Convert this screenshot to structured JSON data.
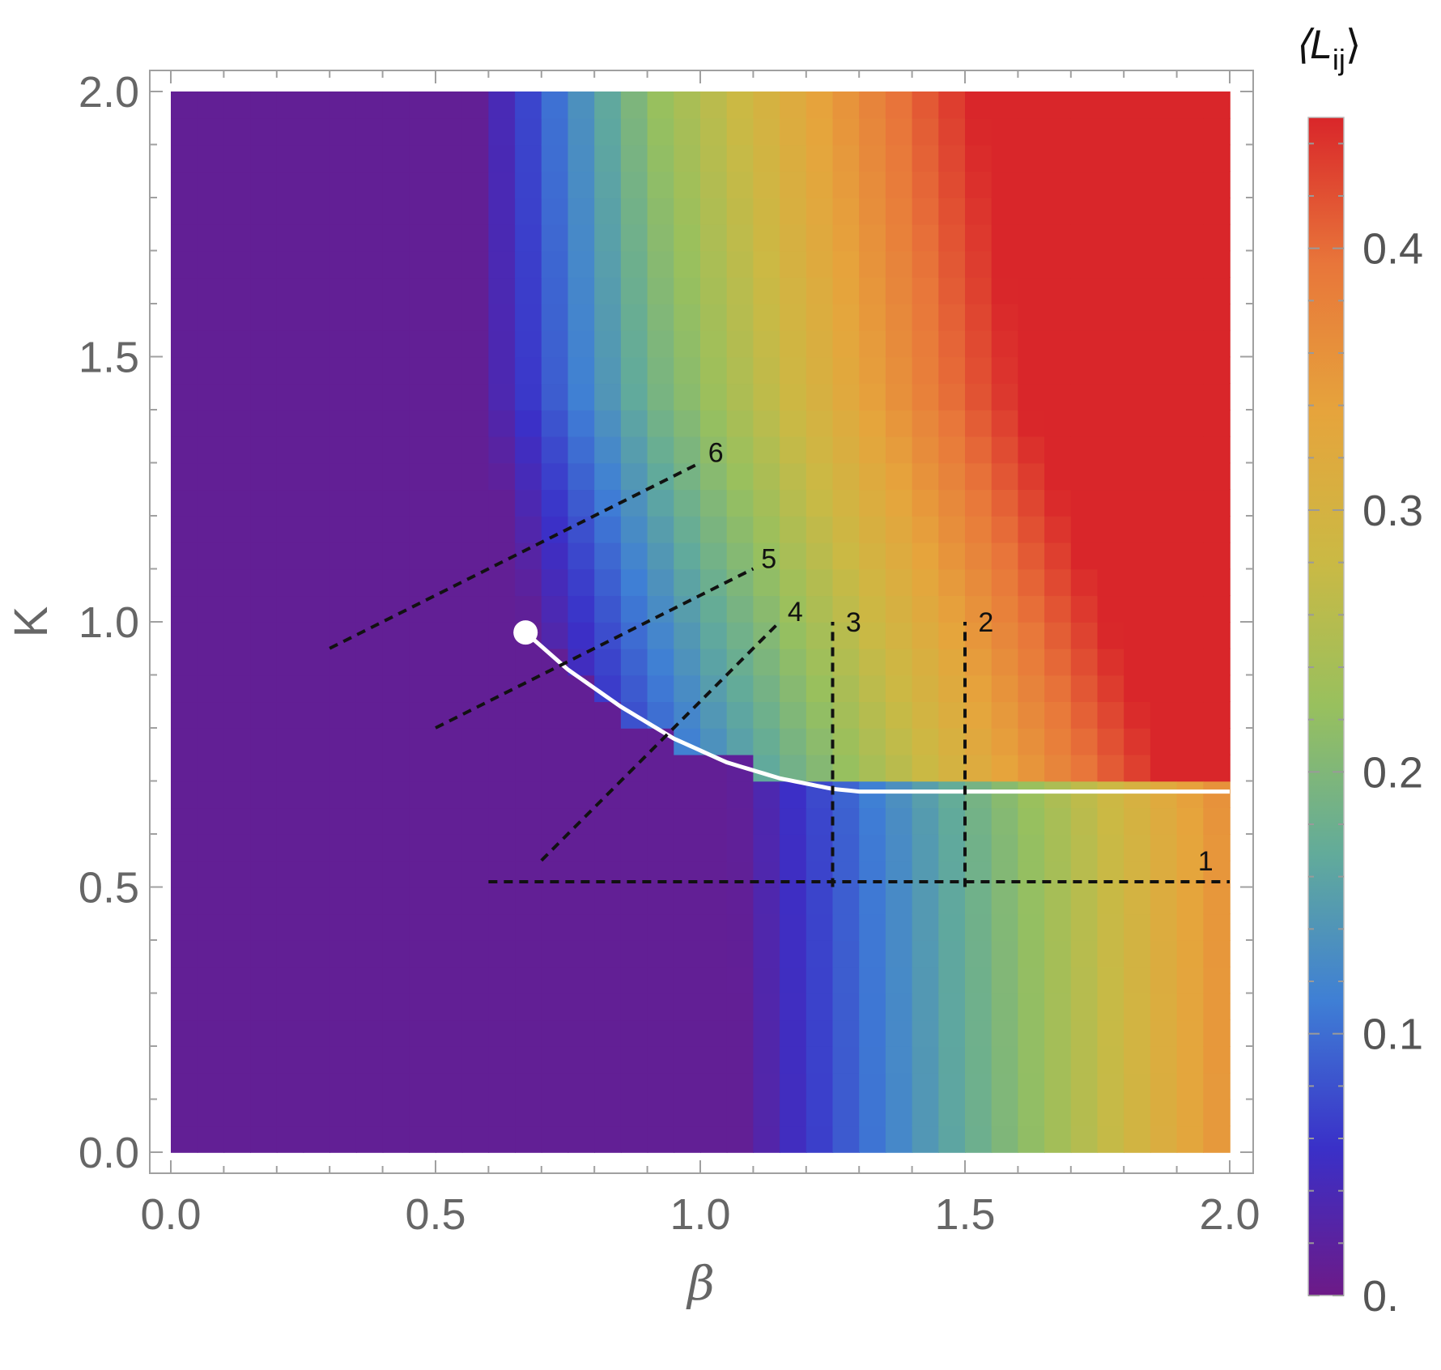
{
  "chart_data": {
    "type": "heatmap",
    "title": "",
    "xlabel": "β",
    "ylabel": "K",
    "xlim": [
      0.0,
      2.0
    ],
    "ylim": [
      0.0,
      2.0
    ],
    "x_ticks": [
      "0.0",
      "0.5",
      "1.0",
      "1.5",
      "2.0"
    ],
    "y_ticks": [
      "0.0",
      "0.5",
      "1.0",
      "1.5",
      "2.0"
    ],
    "grid": false,
    "grid_resolution": 0.05,
    "colormap": [
      "#6d1a87",
      "#3a30c8",
      "#3f7fd5",
      "#62ab9a",
      "#98c05e",
      "#cbb944",
      "#e6a43c",
      "#e8763a",
      "#d9262a"
    ],
    "colorbar": {
      "title_main": "⟨L",
      "title_sub": "ij",
      "title_end": "⟩",
      "range": [
        0.0,
        0.45
      ],
      "ticks": [
        {
          "value": 0.0,
          "label": "0."
        },
        {
          "value": 0.1,
          "label": "0.1"
        },
        {
          "value": 0.2,
          "label": "0.2"
        },
        {
          "value": 0.3,
          "label": "0.3"
        },
        {
          "value": 0.4,
          "label": "0.4"
        }
      ]
    },
    "phase_boundary": {
      "color": "#ffffff",
      "critical_point": [
        0.67,
        0.98
      ],
      "points": [
        [
          0.67,
          0.98
        ],
        [
          0.75,
          0.91
        ],
        [
          0.85,
          0.84
        ],
        [
          0.95,
          0.78
        ],
        [
          1.05,
          0.735
        ],
        [
          1.15,
          0.705
        ],
        [
          1.25,
          0.685
        ],
        [
          1.3,
          0.68
        ],
        [
          2.0,
          0.68
        ]
      ]
    },
    "paths": [
      {
        "label": "1",
        "start": [
          0.6,
          0.51
        ],
        "end": [
          2.0,
          0.51
        ],
        "label_at": [
          1.94,
          0.55
        ]
      },
      {
        "label": "2",
        "start": [
          1.5,
          0.5
        ],
        "end": [
          1.5,
          1.0
        ],
        "label_at": [
          1.525,
          1.0
        ]
      },
      {
        "label": "3",
        "start": [
          1.25,
          0.5
        ],
        "end": [
          1.25,
          1.0
        ],
        "label_at": [
          1.275,
          1.0
        ]
      },
      {
        "label": "4",
        "start": [
          0.7,
          0.55
        ],
        "end": [
          1.15,
          1.0
        ],
        "label_at": [
          1.165,
          1.02
        ]
      },
      {
        "label": "5",
        "start": [
          0.5,
          0.8
        ],
        "end": [
          1.1,
          1.1
        ],
        "label_at": [
          1.115,
          1.12
        ]
      },
      {
        "label": "6",
        "start": [
          0.3,
          0.95
        ],
        "end": [
          1.0,
          1.3
        ],
        "label_at": [
          1.015,
          1.32
        ]
      }
    ]
  }
}
